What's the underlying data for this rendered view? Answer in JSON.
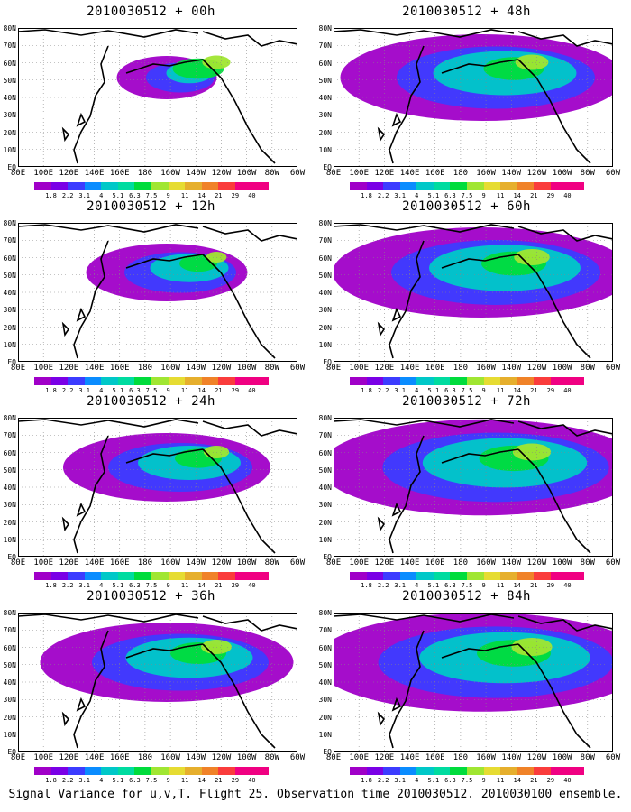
{
  "footer": "Signal Variance for u,v,T. Flight 25. Observation time 2010030512. 2010030100 ensemble.",
  "lat_labels": [
    "80N",
    "70N",
    "60N",
    "50N",
    "40N",
    "30N",
    "20N",
    "10N",
    "EQ"
  ],
  "lon_labels": [
    "80E",
    "100E",
    "120E",
    "140E",
    "160E",
    "180",
    "160W",
    "140W",
    "120W",
    "100W",
    "80W",
    "60W"
  ],
  "colorbar": {
    "labels": [
      "1.8",
      "2.2",
      "3.1",
      "4",
      "5.1",
      "6.3",
      "7.5",
      "9",
      "11",
      "14",
      "21",
      "29",
      "40"
    ],
    "colors": [
      "#a000c8",
      "#7a00e6",
      "#3c3cff",
      "#0a8cff",
      "#00c8c8",
      "#00dca0",
      "#00dc3c",
      "#a0e632",
      "#e6dc32",
      "#e6af2d",
      "#f08228",
      "#fa3c3c",
      "#f00082"
    ]
  },
  "panels": [
    {
      "title": "2010030512 + 00h",
      "coverage": 0.15,
      "intensity": 0.45
    },
    {
      "title": "2010030512 + 12h",
      "coverage": 0.35,
      "intensity": 0.3
    },
    {
      "title": "2010030512 + 24h",
      "coverage": 0.5,
      "intensity": 0.4
    },
    {
      "title": "2010030512 + 36h",
      "coverage": 0.65,
      "intensity": 0.5
    },
    {
      "title": "2010030512 + 48h",
      "coverage": 0.75,
      "intensity": 0.55
    },
    {
      "title": "2010030512 + 60h",
      "coverage": 0.8,
      "intensity": 0.6
    },
    {
      "title": "2010030512 + 72h",
      "coverage": 0.88,
      "intensity": 0.65
    },
    {
      "title": "2010030512 + 84h",
      "coverage": 0.92,
      "intensity": 0.7
    }
  ]
}
